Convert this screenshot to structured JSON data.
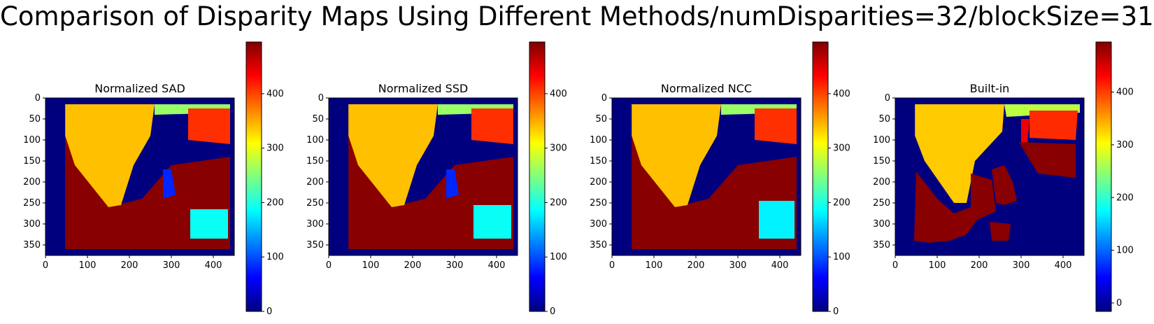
{
  "figure": {
    "title": "Comparison of Disparity Maps Using Different Methods/numDisparities=32/blockSize=31"
  },
  "colormap": {
    "name": "jet",
    "stops": [
      "#00007f",
      "#0000ff",
      "#007fff",
      "#00ffff",
      "#7fff7f",
      "#ffff00",
      "#ff7f00",
      "#ff0000",
      "#7f0000"
    ]
  },
  "chart_data": [
    {
      "type": "heatmap",
      "title": "Normalized SAD",
      "x_ticks": [
        0,
        100,
        200,
        300,
        400
      ],
      "y_ticks": [
        0,
        50,
        100,
        150,
        200,
        250,
        300,
        350
      ],
      "xlim": [
        0,
        450
      ],
      "ylim": [
        375,
        0
      ],
      "colorbar": {
        "ticks": [
          0,
          100,
          200,
          300,
          400
        ],
        "range": [
          0,
          495
        ]
      },
      "regions": [
        {
          "label": "left border",
          "value": 0,
          "poly": [
            [
              0,
              0
            ],
            [
              47,
              0
            ],
            [
              47,
              375
            ],
            [
              0,
              375
            ]
          ]
        },
        {
          "label": "dark red foreground",
          "value": 490,
          "poly": [
            [
              47,
              90
            ],
            [
              150,
              260
            ],
            [
              230,
              240
            ],
            [
              300,
              160
            ],
            [
              440,
              140
            ],
            [
              440,
              360
            ],
            [
              47,
              360
            ]
          ]
        },
        {
          "label": "yellow wall",
          "value": 340,
          "poly": [
            [
              47,
              15
            ],
            [
              260,
              15
            ],
            [
              250,
              90
            ],
            [
              210,
              160
            ],
            [
              180,
              255
            ],
            [
              150,
              260
            ],
            [
              70,
              160
            ],
            [
              47,
              90
            ]
          ]
        },
        {
          "label": "green back wall",
          "value": 260,
          "poly": [
            [
              260,
              15
            ],
            [
              440,
              15
            ],
            [
              440,
              35
            ],
            [
              260,
              40
            ]
          ]
        },
        {
          "label": "orange box",
          "value": 410,
          "poly": [
            [
              340,
              25
            ],
            [
              440,
              25
            ],
            [
              440,
              110
            ],
            [
              340,
              100
            ]
          ]
        },
        {
          "label": "blue hole",
          "value": 80,
          "poly": [
            [
              280,
              170
            ],
            [
              300,
              170
            ],
            [
              310,
              230
            ],
            [
              280,
              240
            ]
          ]
        },
        {
          "label": "cyan patch",
          "value": 190,
          "poly": [
            [
              345,
              265
            ],
            [
              435,
              265
            ],
            [
              435,
              335
            ],
            [
              345,
              335
            ]
          ]
        }
      ]
    },
    {
      "type": "heatmap",
      "title": "Normalized SSD",
      "x_ticks": [
        0,
        100,
        200,
        300,
        400
      ],
      "y_ticks": [
        0,
        50,
        100,
        150,
        200,
        250,
        300,
        350
      ],
      "xlim": [
        0,
        450
      ],
      "ylim": [
        375,
        0
      ],
      "colorbar": {
        "ticks": [
          0,
          100,
          200,
          300,
          400
        ],
        "range": [
          0,
          495
        ]
      },
      "regions": [
        {
          "label": "left border",
          "value": 0,
          "poly": [
            [
              0,
              0
            ],
            [
              47,
              0
            ],
            [
              47,
              375
            ],
            [
              0,
              375
            ]
          ]
        },
        {
          "label": "dark red foreground",
          "value": 490,
          "poly": [
            [
              47,
              90
            ],
            [
              150,
              260
            ],
            [
              230,
              240
            ],
            [
              300,
              160
            ],
            [
              440,
              140
            ],
            [
              440,
              360
            ],
            [
              47,
              360
            ]
          ]
        },
        {
          "label": "yellow wall",
          "value": 340,
          "poly": [
            [
              47,
              15
            ],
            [
              260,
              15
            ],
            [
              250,
              90
            ],
            [
              210,
              160
            ],
            [
              180,
              255
            ],
            [
              150,
              260
            ],
            [
              70,
              160
            ],
            [
              47,
              90
            ]
          ]
        },
        {
          "label": "green back wall",
          "value": 260,
          "poly": [
            [
              260,
              15
            ],
            [
              440,
              15
            ],
            [
              440,
              35
            ],
            [
              260,
              40
            ]
          ]
        },
        {
          "label": "orange box",
          "value": 410,
          "poly": [
            [
              340,
              25
            ],
            [
              440,
              25
            ],
            [
              440,
              110
            ],
            [
              340,
              100
            ]
          ]
        },
        {
          "label": "blue hole",
          "value": 80,
          "poly": [
            [
              280,
              170
            ],
            [
              300,
              170
            ],
            [
              310,
              230
            ],
            [
              280,
              240
            ]
          ]
        },
        {
          "label": "cyan patch",
          "value": 190,
          "poly": [
            [
              345,
              255
            ],
            [
              435,
              255
            ],
            [
              435,
              335
            ],
            [
              345,
              335
            ]
          ]
        }
      ]
    },
    {
      "type": "heatmap",
      "title": "Normalized NCC",
      "x_ticks": [
        0,
        100,
        200,
        300,
        400
      ],
      "y_ticks": [
        0,
        50,
        100,
        150,
        200,
        250,
        300,
        350
      ],
      "xlim": [
        0,
        450
      ],
      "ylim": [
        375,
        0
      ],
      "colorbar": {
        "ticks": [
          0,
          100,
          200,
          300,
          400
        ],
        "range": [
          0,
          495
        ]
      },
      "regions": [
        {
          "label": "left border",
          "value": 0,
          "poly": [
            [
              0,
              0
            ],
            [
              47,
              0
            ],
            [
              47,
              375
            ],
            [
              0,
              375
            ]
          ]
        },
        {
          "label": "dark red foreground",
          "value": 490,
          "poly": [
            [
              47,
              90
            ],
            [
              150,
              260
            ],
            [
              230,
              240
            ],
            [
              300,
              160
            ],
            [
              440,
              140
            ],
            [
              440,
              360
            ],
            [
              47,
              360
            ]
          ]
        },
        {
          "label": "yellow wall",
          "value": 340,
          "poly": [
            [
              47,
              15
            ],
            [
              260,
              15
            ],
            [
              250,
              90
            ],
            [
              210,
              160
            ],
            [
              180,
              255
            ],
            [
              150,
              260
            ],
            [
              70,
              160
            ],
            [
              47,
              90
            ]
          ]
        },
        {
          "label": "green back wall",
          "value": 260,
          "poly": [
            [
              260,
              15
            ],
            [
              440,
              15
            ],
            [
              440,
              35
            ],
            [
              260,
              40
            ]
          ]
        },
        {
          "label": "orange box",
          "value": 410,
          "poly": [
            [
              340,
              25
            ],
            [
              440,
              25
            ],
            [
              440,
              110
            ],
            [
              340,
              100
            ]
          ]
        },
        {
          "label": "cyan patch",
          "value": 180,
          "poly": [
            [
              350,
              245
            ],
            [
              435,
              245
            ],
            [
              435,
              335
            ],
            [
              350,
              335
            ]
          ]
        }
      ]
    },
    {
      "type": "heatmap",
      "title": "Built-in",
      "x_ticks": [
        0,
        100,
        200,
        300,
        400
      ],
      "y_ticks": [
        0,
        50,
        100,
        150,
        200,
        250,
        300,
        350
      ],
      "xlim": [
        0,
        450
      ],
      "ylim": [
        375,
        0
      ],
      "colorbar": {
        "ticks": [
          0,
          100,
          200,
          300,
          400
        ],
        "range": [
          -16,
          495
        ]
      },
      "regions": [
        {
          "label": "background",
          "value": -16,
          "poly": [
            [
              0,
              0
            ],
            [
              450,
              0
            ],
            [
              450,
              375
            ],
            [
              0,
              375
            ]
          ]
        },
        {
          "label": "yellow wall",
          "value": 330,
          "poly": [
            [
              47,
              15
            ],
            [
              260,
              15
            ],
            [
              255,
              80
            ],
            [
              190,
              150
            ],
            [
              170,
              250
            ],
            [
              140,
              250
            ],
            [
              70,
              150
            ],
            [
              47,
              90
            ]
          ]
        },
        {
          "label": "green back wall",
          "value": 270,
          "poly": [
            [
              260,
              15
            ],
            [
              440,
              15
            ],
            [
              440,
              35
            ],
            [
              265,
              45
            ]
          ]
        },
        {
          "label": "orange box",
          "value": 410,
          "poly": [
            [
              320,
              30
            ],
            [
              435,
              30
            ],
            [
              430,
              100
            ],
            [
              320,
              95
            ]
          ]
        },
        {
          "label": "red stripe",
          "value": 440,
          "poly": [
            [
              300,
              50
            ],
            [
              320,
              50
            ],
            [
              315,
              110
            ],
            [
              300,
              105
            ]
          ]
        },
        {
          "label": "dark red shelf",
          "value": 490,
          "poly": [
            [
              295,
              105
            ],
            [
              430,
              110
            ],
            [
              430,
              190
            ],
            [
              340,
              180
            ]
          ]
        },
        {
          "label": "dark red foreground",
          "value": 490,
          "poly": [
            [
              50,
              175
            ],
            [
              100,
              240
            ],
            [
              140,
              275
            ],
            [
              180,
              260
            ],
            [
              180,
              180
            ],
            [
              230,
              195
            ],
            [
              240,
              270
            ],
            [
              195,
              290
            ],
            [
              170,
              325
            ],
            [
              130,
              340
            ],
            [
              80,
              345
            ],
            [
              45,
              340
            ]
          ]
        },
        {
          "label": "dark red block",
          "value": 490,
          "poly": [
            [
              230,
              170
            ],
            [
              260,
              160
            ],
            [
              280,
              200
            ],
            [
              290,
              245
            ],
            [
              260,
              255
            ],
            [
              240,
              250
            ]
          ]
        },
        {
          "label": "dark red patch",
          "value": 490,
          "poly": [
            [
              225,
              295
            ],
            [
              275,
              300
            ],
            [
              270,
              340
            ],
            [
              230,
              340
            ]
          ]
        }
      ]
    }
  ]
}
